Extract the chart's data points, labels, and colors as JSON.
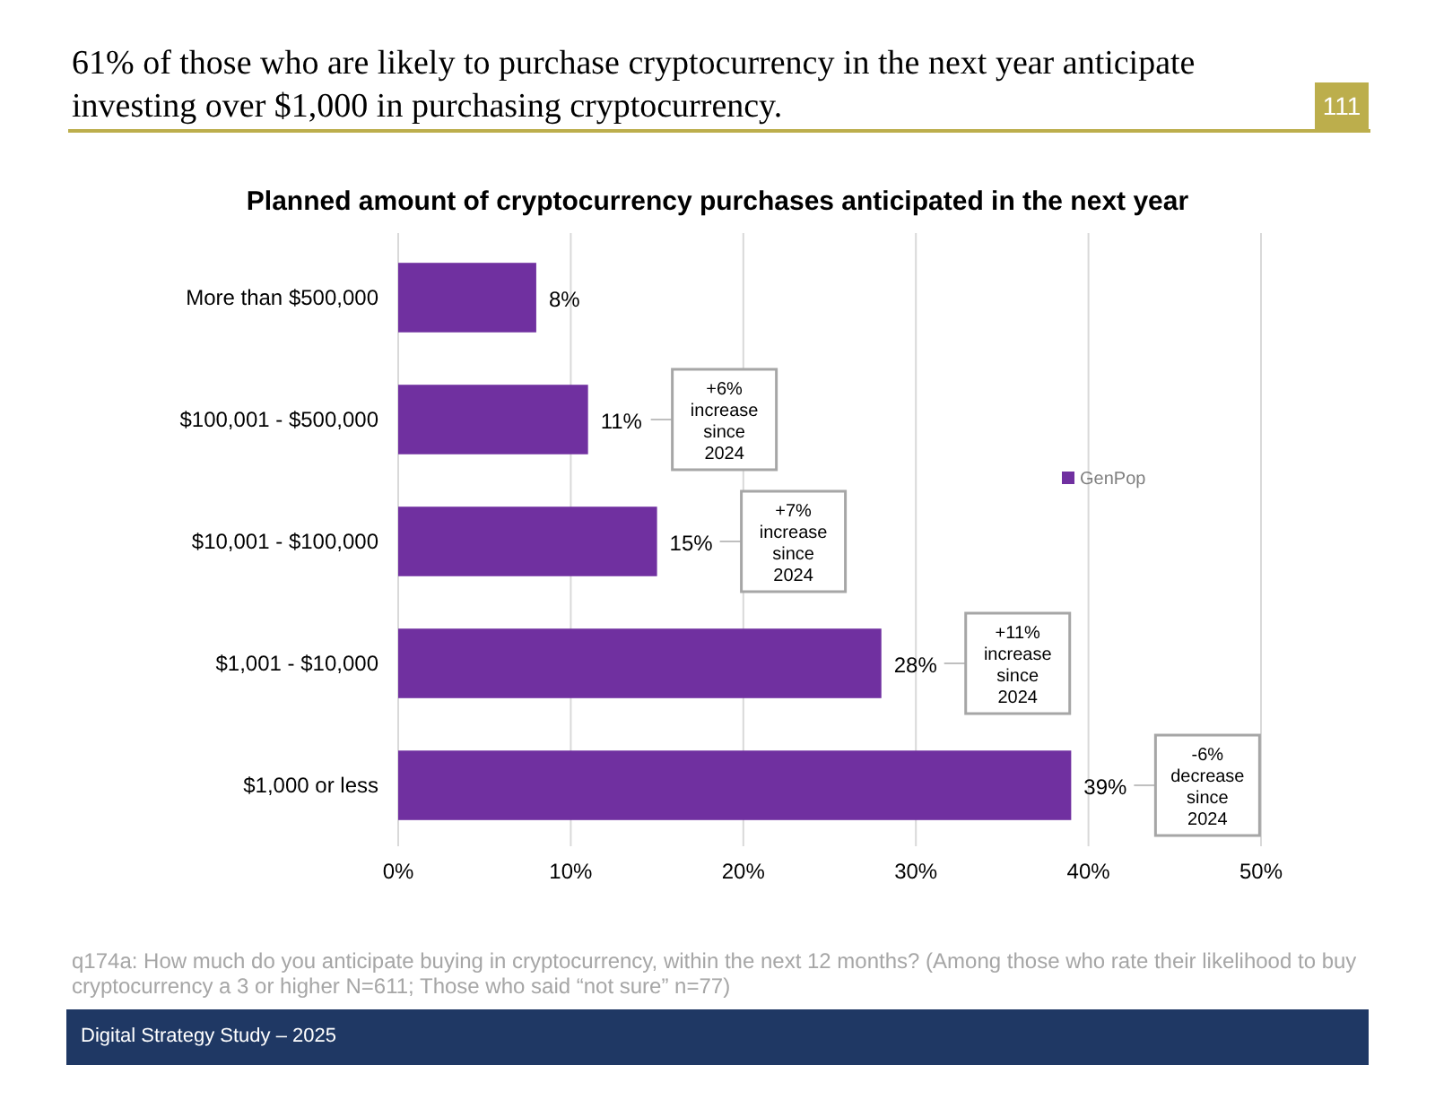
{
  "chart_data": {
    "type": "bar",
    "orientation": "horizontal",
    "title": "61% of those who are likely to purchase cryptocurrency in the next year anticipate investing over $1,000 in purchasing cryptocurrency.",
    "subtitle": "Planned amount of cryptocurrency purchases anticipated in the next year",
    "categories": [
      "More than $500,000",
      "$100,001 - $500,000",
      "$10,001 - $100,000",
      "$1,001 - $10,000",
      "$1,000 or less"
    ],
    "series": [
      {
        "name": "GenPop",
        "color": "#7030a0",
        "values": [
          8,
          11,
          15,
          28,
          39
        ]
      }
    ],
    "value_labels": [
      "8%",
      "11%",
      "15%",
      "28%",
      "39%"
    ],
    "xlim": [
      0,
      50
    ],
    "xticks": [
      {
        "value": 0,
        "label": "0%"
      },
      {
        "value": 10,
        "label": "10%"
      },
      {
        "value": 20,
        "label": "20%"
      },
      {
        "value": 30,
        "label": "30%"
      },
      {
        "value": 40,
        "label": "40%"
      },
      {
        "value": 50,
        "label": "50%"
      }
    ],
    "grid": "x",
    "legend": "right",
    "annotations": [
      "111",
      "q174a: How much do you anticipate buying in cryptocurrency, within the next 12 months? (Among those who rate their likelihood to buy cryptocurrency a 3 or higher N=611; Those who said “not sure” n=77)",
      "Digital Strategy Study – 2025",
      "+6% increase since 2024",
      "+7% increase since 2024",
      "+11% increase since 2024",
      "-6% decrease since 2024"
    ]
  }
}
